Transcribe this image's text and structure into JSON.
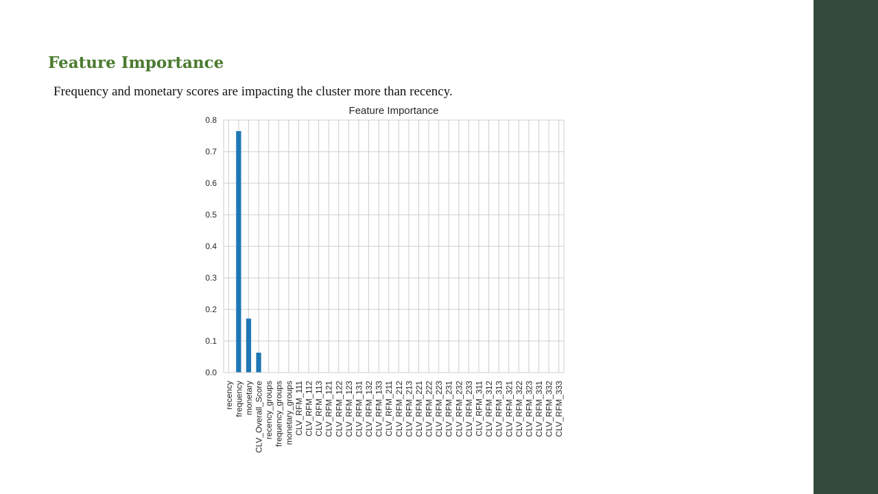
{
  "slide": {
    "title": "Feature Importance",
    "subtitle": "Frequency and monetary scores are impacting the cluster more than recency.",
    "colors": {
      "title": "#4a7a2f",
      "accent_band": "#334a3d"
    }
  },
  "chart_data": {
    "type": "bar",
    "title": "Feature Importance",
    "xlabel": "",
    "ylabel": "",
    "ylim": [
      0,
      0.8
    ],
    "yticks": [
      0.0,
      0.1,
      0.2,
      0.3,
      0.4,
      0.5,
      0.6,
      0.7,
      0.8
    ],
    "grid": true,
    "bar_color": "#1f77b4",
    "categories": [
      "recency",
      "frequency",
      "monetary",
      "CLV_Overall_Score",
      "recency_groups",
      "frequency_groups",
      "monetary_groups",
      "CLV_RFM_111",
      "CLV_RFM_112",
      "CLV_RFM_113",
      "CLV_RFM_121",
      "CLV_RFM_122",
      "CLV_RFM_123",
      "CLV_RFM_131",
      "CLV_RFM_132",
      "CLV_RFM_133",
      "CLV_RFM_211",
      "CLV_RFM_212",
      "CLV_RFM_213",
      "CLV_RFM_221",
      "CLV_RFM_222",
      "CLV_RFM_223",
      "CLV_RFM_231",
      "CLV_RFM_232",
      "CLV_RFM_233",
      "CLV_RFM_311",
      "CLV_RFM_312",
      "CLV_RFM_313",
      "CLV_RFM_321",
      "CLV_RFM_322",
      "CLV_RFM_323",
      "CLV_RFM_331",
      "CLV_RFM_332",
      "CLV_RFM_333"
    ],
    "values": [
      0.0,
      0.765,
      0.171,
      0.063,
      0.0,
      0.0,
      0.0,
      0.0,
      0.0,
      0.0,
      0.0,
      0.0,
      0.0,
      0.0,
      0.0,
      0.0,
      0.0,
      0.0,
      0.0,
      0.0,
      0.0,
      0.0,
      0.0,
      0.0,
      0.0,
      0.0,
      0.0,
      0.0,
      0.0,
      0.0,
      0.0,
      0.0,
      0.0,
      0.0
    ]
  }
}
